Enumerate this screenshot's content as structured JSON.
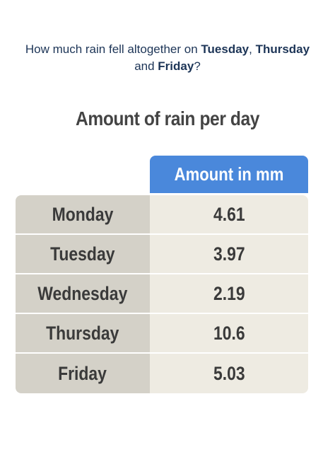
{
  "question": {
    "segments": [
      {
        "text": "How much rain fell altogether on ",
        "bold": false
      },
      {
        "text": "Tuesday",
        "bold": true
      },
      {
        "text": ", ",
        "bold": false
      },
      {
        "text": "Thursday",
        "bold": true
      },
      {
        "text": " and ",
        "bold": false
      },
      {
        "text": "Friday",
        "bold": true
      },
      {
        "text": "?",
        "bold": false
      }
    ]
  },
  "table": {
    "title": "Amount of rain per day",
    "header": "Amount in mm",
    "rows": [
      [
        "Monday",
        4.61
      ],
      [
        "Tuesday",
        3.97
      ],
      [
        "Wednesday",
        2.19
      ],
      [
        "Thursday",
        10.6
      ],
      [
        "Friday",
        5.03
      ]
    ]
  }
}
